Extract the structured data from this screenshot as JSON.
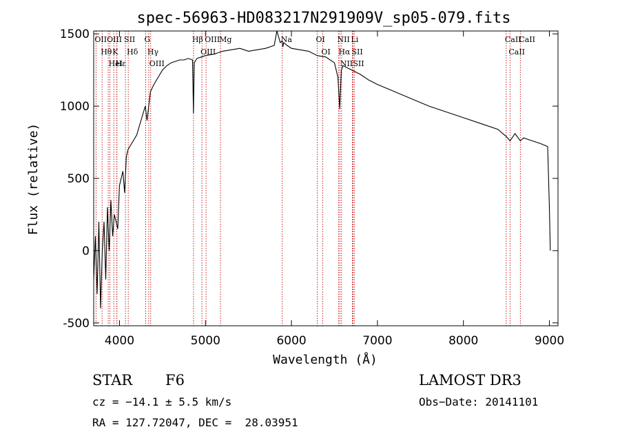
{
  "chart_data": {
    "type": "line",
    "title": "spec-56963-HD083217N291909V_sp05-079.fits",
    "xlabel": "Wavelength (Å)",
    "ylabel": "Flux (relative)",
    "xlim": [
      3700,
      9100
    ],
    "ylim": [
      -520,
      1520
    ],
    "xticks": [
      4000,
      5000,
      6000,
      7000,
      8000,
      9000
    ],
    "yticks": [
      -500,
      0,
      500,
      1000,
      1500
    ],
    "grid": false,
    "series": [
      {
        "name": "flux",
        "color": "#000000",
        "x": [
          3700,
          3720,
          3740,
          3760,
          3780,
          3800,
          3820,
          3840,
          3860,
          3880,
          3900,
          3920,
          3940,
          3960,
          3980,
          4000,
          4020,
          4040,
          4060,
          4080,
          4100,
          4150,
          4200,
          4250,
          4300,
          4320,
          4340,
          4360,
          4400,
          4450,
          4500,
          4550,
          4600,
          4650,
          4700,
          4750,
          4800,
          4850,
          4860,
          4870,
          4900,
          4950,
          5000,
          5100,
          5200,
          5300,
          5400,
          5500,
          5600,
          5700,
          5800,
          5830,
          5850,
          5870,
          5890,
          5900,
          5910,
          5950,
          6000,
          6100,
          6200,
          6300,
          6400,
          6500,
          6540,
          6562,
          6580,
          6600,
          6700,
          6800,
          6900,
          7000,
          7200,
          7400,
          7600,
          7800,
          8000,
          8200,
          8400,
          8498,
          8542,
          8600,
          8662,
          8700,
          8800,
          8900,
          8980,
          9000,
          9010
        ],
        "y": [
          -200,
          100,
          -300,
          200,
          -400,
          0,
          200,
          -200,
          300,
          0,
          350,
          100,
          250,
          200,
          150,
          450,
          500,
          550,
          400,
          650,
          700,
          750,
          800,
          900,
          1000,
          900,
          1000,
          1100,
          1150,
          1200,
          1250,
          1280,
          1300,
          1310,
          1320,
          1320,
          1330,
          1320,
          950,
          1300,
          1330,
          1340,
          1350,
          1360,
          1380,
          1390,
          1400,
          1380,
          1390,
          1400,
          1420,
          1550,
          1480,
          1440,
          1450,
          1410,
          1440,
          1420,
          1400,
          1390,
          1380,
          1350,
          1340,
          1300,
          1200,
          980,
          1250,
          1280,
          1250,
          1220,
          1180,
          1150,
          1100,
          1050,
          1000,
          960,
          920,
          880,
          840,
          790,
          760,
          810,
          760,
          780,
          760,
          740,
          720,
          300,
          0
        ]
      }
    ],
    "lines": [
      {
        "label": "Hθ",
        "x": 3798
      },
      {
        "label": "OII",
        "x": 3727
      },
      {
        "label": "OIII",
        "x": 3869
      },
      {
        "label": "K",
        "x": 3934
      },
      {
        "label": "H",
        "x": 3969
      },
      {
        "label": "Hε",
        "x": 3970
      },
      {
        "label": "HeI",
        "x": 3889
      },
      {
        "label": "SII",
        "x": 4069
      },
      {
        "label": "Hδ",
        "x": 4102
      },
      {
        "label": "OIII",
        "x": 4363
      },
      {
        "label": "Hγ",
        "x": 4340
      },
      {
        "label": "G",
        "x": 4305
      },
      {
        "label": "OIII",
        "x": 4959
      },
      {
        "label": "OIII",
        "x": 5007
      },
      {
        "label": "Hβ",
        "x": 4861
      },
      {
        "label": "Mg",
        "x": 5175
      },
      {
        "label": "Na",
        "x": 5893
      },
      {
        "label": "OI",
        "x": 6300
      },
      {
        "label": "OI",
        "x": 6363
      },
      {
        "label": "Hα",
        "x": 6563
      },
      {
        "label": "NII",
        "x": 6548
      },
      {
        "label": "NII",
        "x": 6583
      },
      {
        "label": "Li",
        "x": 6708
      },
      {
        "label": "SII",
        "x": 6716
      },
      {
        "label": "SII",
        "x": 6731
      },
      {
        "label": "CaII",
        "x": 8498
      },
      {
        "label": "CaII",
        "x": 8542
      },
      {
        "label": "CaII",
        "x": 8662
      }
    ]
  },
  "info": {
    "object_class": "STAR",
    "subclass": "F6",
    "survey": "LAMOST DR3",
    "redshift": "cz = −14.1 ± 5.5 km/s",
    "obs_date": "Obs−Date: 20141101",
    "coordinates": "RA = 127.72047, DEC =  28.03951"
  }
}
